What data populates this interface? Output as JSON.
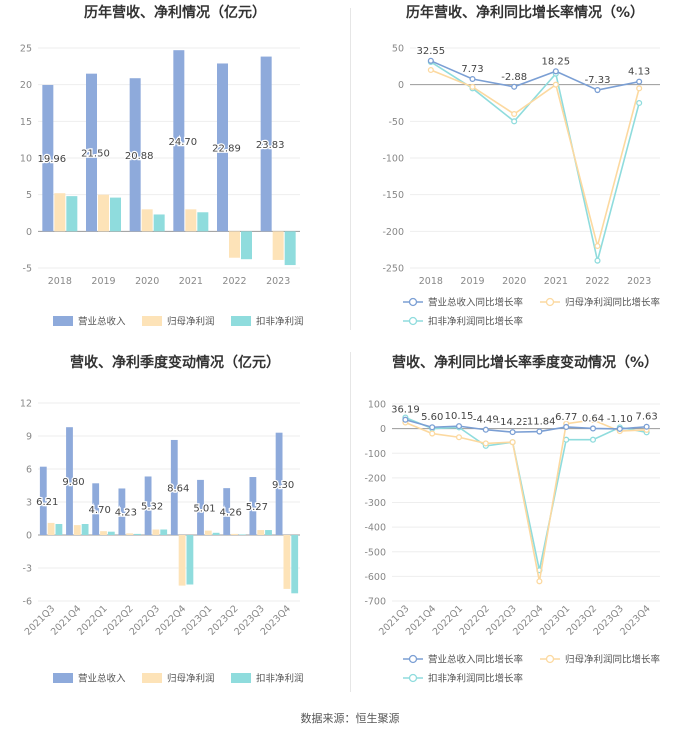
{
  "source": "数据来源：恒生聚源",
  "chart_data": [
    {
      "id": "annual-revenue-profit",
      "type": "bar",
      "title": "历年营收、净利情况（亿元）",
      "categories": [
        "2018",
        "2019",
        "2020",
        "2021",
        "2022",
        "2023"
      ],
      "ylim": [
        -5,
        25
      ],
      "yticks": [
        -5,
        0,
        5,
        10,
        15,
        20,
        25
      ],
      "series": [
        {
          "name": "营业总收入",
          "color": "#8eaadb",
          "values": [
            19.96,
            21.5,
            20.88,
            24.7,
            22.89,
            23.83
          ],
          "labels": [
            "19.96",
            "21.50",
            "20.88",
            "24.70",
            "22.89",
            "23.83"
          ]
        },
        {
          "name": "归母净利润",
          "color": "#fde3b8",
          "values": [
            5.2,
            5.0,
            3.0,
            3.0,
            -3.6,
            -3.9
          ]
        },
        {
          "name": "扣非净利润",
          "color": "#8fdcdd",
          "values": [
            4.8,
            4.6,
            2.3,
            2.6,
            -3.8,
            -4.6
          ]
        }
      ]
    },
    {
      "id": "annual-growth",
      "type": "line",
      "title": "历年营收、净利同比增长率情况（%）",
      "categories": [
        "2018",
        "2019",
        "2020",
        "2021",
        "2022",
        "2023"
      ],
      "ylim": [
        -250,
        50
      ],
      "yticks": [
        -250,
        -200,
        -150,
        -100,
        -50,
        0,
        50
      ],
      "series": [
        {
          "name": "营业总收入同比增长率",
          "color": "#7b9fd4",
          "values": [
            32.55,
            7.73,
            -2.88,
            18.25,
            -7.33,
            4.13
          ],
          "labels": [
            "32.55",
            "7.73",
            "-2.88",
            "18.25",
            "-7.33",
            "4.13"
          ]
        },
        {
          "name": "归母净利润同比增长率",
          "color": "#fcd9a0",
          "values": [
            20,
            -3,
            -40,
            0,
            -220,
            -5
          ]
        },
        {
          "name": "扣非净利润同比增长率",
          "color": "#8fdcdd",
          "values": [
            31,
            -5,
            -50,
            15,
            -240,
            -25
          ]
        }
      ]
    },
    {
      "id": "quarterly-revenue-profit",
      "type": "bar",
      "title": "营收、净利季度变动情况（亿元）",
      "categories": [
        "2021Q3",
        "2021Q4",
        "2022Q1",
        "2022Q2",
        "2022Q3",
        "2022Q4",
        "2023Q1",
        "2023Q2",
        "2023Q3",
        "2023Q4"
      ],
      "ylim": [
        -6,
        12
      ],
      "yticks": [
        -6,
        -3,
        0,
        3,
        6,
        9,
        12
      ],
      "series": [
        {
          "name": "营业总收入",
          "color": "#8eaadb",
          "values": [
            6.21,
            9.8,
            4.7,
            4.23,
            5.32,
            8.64,
            5.01,
            4.26,
            5.27,
            9.3
          ],
          "labels": [
            "6.21",
            "9.80",
            "4.70",
            "4.23",
            "5.32",
            "8.64",
            "5.01",
            "4.26",
            "5.27",
            "9.30"
          ]
        },
        {
          "name": "归母净利润",
          "color": "#fde3b8",
          "values": [
            1.1,
            0.9,
            0.35,
            0.15,
            0.5,
            -4.6,
            0.4,
            0.1,
            0.45,
            -4.9
          ]
        },
        {
          "name": "扣非净利润",
          "color": "#8fdcdd",
          "values": [
            1.0,
            1.0,
            0.3,
            0.1,
            0.5,
            -4.5,
            0.2,
            0.05,
            0.45,
            -5.3
          ]
        }
      ]
    },
    {
      "id": "quarterly-growth",
      "type": "line",
      "title": "营收、净利同比增长率季度变动情况（%）",
      "categories": [
        "2021Q3",
        "2021Q4",
        "2022Q1",
        "2022Q2",
        "2022Q3",
        "2022Q4",
        "2023Q1",
        "2023Q2",
        "2023Q3",
        "2023Q4"
      ],
      "ylim": [
        -700,
        100
      ],
      "yticks": [
        -700,
        -600,
        -500,
        -400,
        -300,
        -200,
        -100,
        0,
        100
      ],
      "series": [
        {
          "name": "营业总收入同比增长率",
          "color": "#7b9fd4",
          "values": [
            36.19,
            5.6,
            10.15,
            -4.49,
            -14.22,
            -11.84,
            6.77,
            0.64,
            -1.1,
            7.63
          ],
          "labels": [
            "36.19",
            "5.60",
            "10.15",
            "-4.49",
            "-14.22",
            "-11.84",
            "6.77",
            "0.64",
            "-1.10",
            "7.63"
          ]
        },
        {
          "name": "归母净利润同比增长率",
          "color": "#fcd9a0",
          "values": [
            25,
            -20,
            -35,
            -60,
            -55,
            -620,
            20,
            35,
            -10,
            -5
          ]
        },
        {
          "name": "扣非净利润同比增长率",
          "color": "#8fdcdd",
          "values": [
            45,
            0,
            5,
            -70,
            -55,
            -575,
            -45,
            -45,
            5,
            -15
          ]
        }
      ]
    }
  ]
}
